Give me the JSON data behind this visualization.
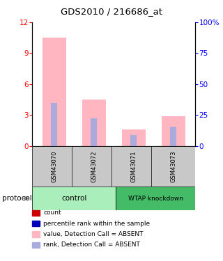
{
  "title": "GDS2010 / 216686_at",
  "samples": [
    "GSM43070",
    "GSM43072",
    "GSM43071",
    "GSM43073"
  ],
  "bar_values_pink": [
    10.5,
    4.5,
    1.6,
    2.9
  ],
  "bar_values_blue": [
    4.2,
    2.7,
    1.1,
    1.9
  ],
  "ylim_left": [
    0,
    12
  ],
  "ylim_right": [
    0,
    100
  ],
  "yticks_left": [
    0,
    3,
    6,
    9,
    12
  ],
  "yticks_right": [
    0,
    25,
    50,
    75,
    100
  ],
  "ytick_labels_right": [
    "0",
    "25",
    "50",
    "75",
    "100%"
  ],
  "pink_color": "#FFB6C1",
  "blue_color": "#AAAADD",
  "sample_area_color": "#C8C8C8",
  "control_color": "#AAEEBB",
  "wtap_color": "#44BB66",
  "legend_items": [
    {
      "color": "#CC0000",
      "label": "count"
    },
    {
      "color": "#0000BB",
      "label": "percentile rank within the sample"
    },
    {
      "color": "#FFB6C1",
      "label": "value, Detection Call = ABSENT"
    },
    {
      "color": "#AAAADD",
      "label": "rank, Detection Call = ABSENT"
    }
  ],
  "bar_positions": [
    0,
    1,
    2,
    3
  ],
  "pink_bar_width": 0.6,
  "blue_bar_width": 0.15
}
